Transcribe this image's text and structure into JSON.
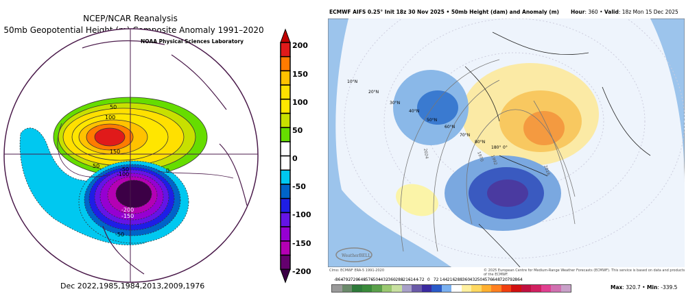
{
  "left_panel": {
    "title_line1": "NCEP/NCAR Reanalysis",
    "title_line2": "50mb Geopotential Height (m) Composite Anomaly 1991–2020 climo",
    "credit": "NOAA Physical Sciences Laboratory",
    "caption": "Dec 2022,1985,1984,2013,2009,1976",
    "contour_labels": [
      "50",
      "100",
      "150",
      "50",
      "-50",
      "-100",
      "0",
      "-200",
      "-150",
      "-50"
    ],
    "colorbar": {
      "labels": [
        "200",
        "150",
        "100",
        "50",
        "0",
        "-50",
        "-100",
        "-150",
        "-200"
      ],
      "colors": [
        "#e01a1a",
        "#ff7b00",
        "#ffc200",
        "#ffe000",
        "#ffe600",
        "#c8e000",
        "#66dd00",
        "#ffffff",
        "#ffffff",
        "#00c8f0",
        "#0064c8",
        "#1e1ee6",
        "#6414e6",
        "#9600d2",
        "#b400b4",
        "#64006e"
      ],
      "over_color": "#c00000",
      "under_color": "#3c0046"
    }
  },
  "right_panel": {
    "title": "ECMWF AIFS 0.25° Init 18z 30 Nov 2025 • 50mb Height (dam) and Anomaly (m)",
    "hour_label": "Hour",
    "hour_value": ": 360 • ",
    "valid_label": "Valid",
    "valid_value": ": 18z Mon 15 Dec 2025",
    "lat_labels": [
      "10°N",
      "20°N",
      "30°N",
      "40°N",
      "50°N",
      "60°N",
      "70°N",
      "80°N",
      "180°",
      "0°"
    ],
    "contour_labels": [
      "2024",
      "1970",
      "1992",
      "2016"
    ],
    "logo_text": "WeatherBELL",
    "clim_note": "Clmo: ECMWF ERA-5 1991-2020",
    "copyright": "© 2025 European Centre for Medium-Range Weather Forecasts (ECMWF). This service is based on data and products of the ECMWF.",
    "colorbar": {
      "labels": [
        "-864",
        "-792",
        "-720",
        "-648",
        "-576",
        "-504",
        "-432",
        "-360",
        "-288",
        "-216",
        "-144",
        "-72",
        "0",
        "72",
        "144",
        "216",
        "288",
        "360",
        "432",
        "504",
        "576",
        "648",
        "720",
        "792",
        "864"
      ],
      "colors": [
        "#9a9a9a",
        "#6a8a6a",
        "#2e7a3a",
        "#3a8a3a",
        "#5aa04a",
        "#9ac870",
        "#c8e0a0",
        "#a8a0c8",
        "#6a5aa8",
        "#3a2aa0",
        "#2a5ac8",
        "#7ab0f0",
        "#ffffff",
        "#fff0a0",
        "#ffd860",
        "#ffb030",
        "#ff8020",
        "#f04010",
        "#d01010",
        "#c01040",
        "#d02060",
        "#e04090",
        "#d070b0",
        "#c8a0c8"
      ]
    },
    "max_label": "Max",
    "max_value": ": 320.7 • ",
    "min_label": "Min",
    "min_value": ": -339.5"
  }
}
